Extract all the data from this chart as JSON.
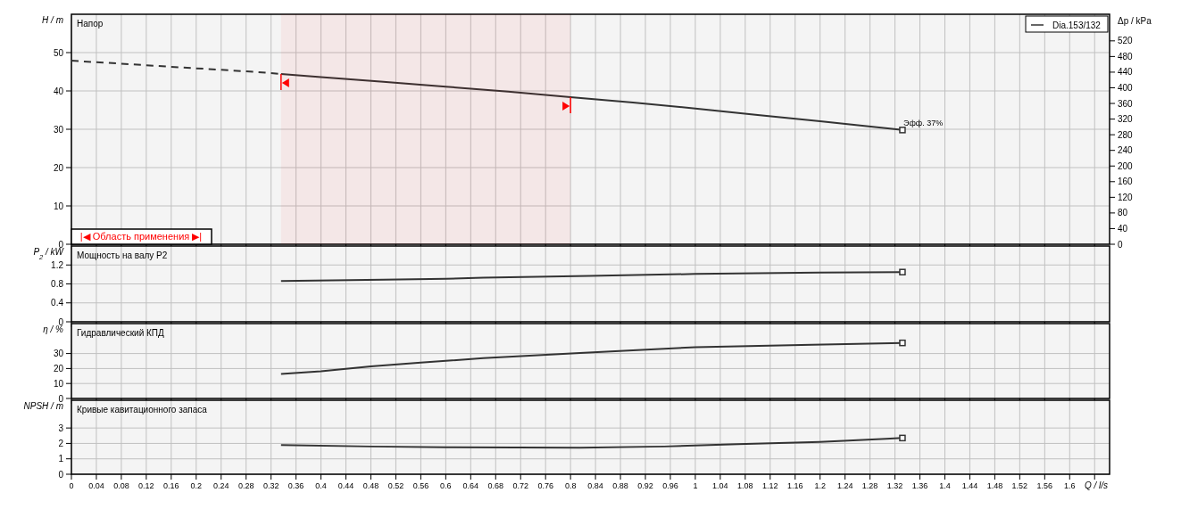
{
  "chart_data": [
    {
      "type": "line",
      "title": "Напор",
      "ylabel": "H / m",
      "y2label": "Δp / kPa",
      "xlim": [
        0,
        1.664
      ],
      "xticks": [
        0,
        0.04,
        0.08,
        0.12,
        0.16,
        0.2,
        0.24,
        0.28,
        0.32,
        0.36,
        0.4,
        0.44,
        0.48,
        0.52,
        0.56,
        0.6,
        0.64,
        0.68,
        0.72,
        0.76,
        0.8,
        0.84,
        0.88,
        0.92,
        0.96,
        1,
        1.04,
        1.08,
        1.12,
        1.16,
        1.2,
        1.24,
        1.28,
        1.32,
        1.36,
        1.4,
        1.44,
        1.48,
        1.52,
        1.56,
        1.6,
        1.64
      ],
      "ylim": [
        0,
        60
      ],
      "yticks": [
        0,
        10,
        20,
        30,
        40,
        50
      ],
      "y2lim": [
        0,
        588
      ],
      "y2ticks": [
        0,
        40,
        80,
        120,
        160,
        200,
        240,
        280,
        320,
        360,
        400,
        440,
        480,
        520
      ],
      "grid": true,
      "legend": "top right",
      "tick_labels": "y",
      "series": [
        {
          "color": "#333333",
          "line_style": "dashed",
          "x": [
            0,
            0.1,
            0.2,
            0.3,
            0.336
          ],
          "values": [
            47.9,
            46.9,
            45.9,
            44.9,
            44.4
          ]
        },
        {
          "name": "Dia.153/132",
          "color": "#333333",
          "line_style": "solid",
          "x": [
            0.336,
            0.4,
            0.5,
            0.6,
            0.7,
            0.8,
            0.9,
            1.0,
            1.1,
            1.2,
            1.332
          ],
          "values": [
            44.4,
            43.6,
            42.4,
            41.1,
            39.8,
            38.4,
            37.0,
            35.4,
            33.7,
            32.1,
            29.8
          ]
        },
        {
          "type": "scatter",
          "marker": "square",
          "color": "#333333",
          "x": [
            1.332
          ],
          "values": [
            29.8
          ]
        }
      ],
      "bands": [
        {
          "axis": "x",
          "from": 0.336,
          "to": 0.8,
          "label": "|◀ Область применения ▶|",
          "color": "#ff0000"
        }
      ],
      "annotations": [
        {
          "text": "Эфф. 37%",
          "x": 1.332,
          "y": 29.8
        }
      ]
    },
    {
      "type": "line",
      "title": "Мощность на валу P2",
      "ylabel": "P$_{2}$ / kW",
      "xlim": [
        0,
        1.664
      ],
      "xticks": [
        0,
        0.04,
        0.08,
        0.12,
        0.16,
        0.2,
        0.24,
        0.28,
        0.32,
        0.36,
        0.4,
        0.44,
        0.48,
        0.52,
        0.56,
        0.6,
        0.64,
        0.68,
        0.72,
        0.76,
        0.8,
        0.84,
        0.88,
        0.92,
        0.96,
        1,
        1.04,
        1.08,
        1.12,
        1.16,
        1.2,
        1.24,
        1.28,
        1.32,
        1.36,
        1.4,
        1.44,
        1.48,
        1.52,
        1.56,
        1.6,
        1.64
      ],
      "ylim": [
        0,
        1.6
      ],
      "yticks": [
        0,
        0.4,
        0.8,
        1.2
      ],
      "grid": true,
      "tick_labels": "y",
      "series": [
        {
          "color": "#333333",
          "line_style": "solid",
          "x": [
            0.336,
            0.5,
            0.6,
            0.66,
            0.83,
            1.0,
            1.2,
            1.332
          ],
          "values": [
            0.86,
            0.89,
            0.91,
            0.93,
            0.97,
            1.01,
            1.04,
            1.05
          ]
        },
        {
          "type": "scatter",
          "marker": "square",
          "color": "#333333",
          "x": [
            1.332
          ],
          "values": [
            1.05
          ]
        }
      ]
    },
    {
      "type": "line",
      "title": "Гидравлический КПД",
      "ylabel": "η / %",
      "xlim": [
        0,
        1.664
      ],
      "xticks": [
        0,
        0.04,
        0.08,
        0.12,
        0.16,
        0.2,
        0.24,
        0.28,
        0.32,
        0.36,
        0.4,
        0.44,
        0.48,
        0.52,
        0.56,
        0.6,
        0.64,
        0.68,
        0.72,
        0.76,
        0.8,
        0.84,
        0.88,
        0.92,
        0.96,
        1,
        1.04,
        1.08,
        1.12,
        1.16,
        1.2,
        1.24,
        1.28,
        1.32,
        1.36,
        1.4,
        1.44,
        1.48,
        1.52,
        1.56,
        1.6,
        1.64
      ],
      "ylim": [
        0,
        50
      ],
      "yticks": [
        0,
        10,
        20,
        30
      ],
      "grid": true,
      "tick_labels": "y",
      "series": [
        {
          "color": "#333333",
          "line_style": "solid",
          "x": [
            0.336,
            0.4,
            0.48,
            0.56,
            0.66,
            0.815,
            0.9,
            1.0,
            1.187,
            1.332
          ],
          "values": [
            16.4,
            18.2,
            21.4,
            24.0,
            26.9,
            30.4,
            32.2,
            34.2,
            35.9,
            37.1
          ]
        },
        {
          "type": "scatter",
          "marker": "square",
          "color": "#333333",
          "x": [
            1.332
          ],
          "values": [
            37.1
          ]
        }
      ]
    },
    {
      "type": "line",
      "title": "Кривые кавитационного запаса",
      "ylabel": "NPSH / m",
      "xlabel": "Q / l/s",
      "xlim": [
        0,
        1.664
      ],
      "xticks": [
        0,
        0.04,
        0.08,
        0.12,
        0.16,
        0.2,
        0.24,
        0.28,
        0.32,
        0.36,
        0.4,
        0.44,
        0.48,
        0.52,
        0.56,
        0.6,
        0.64,
        0.68,
        0.72,
        0.76,
        0.8,
        0.84,
        0.88,
        0.92,
        0.96,
        1,
        1.04,
        1.08,
        1.12,
        1.16,
        1.2,
        1.24,
        1.28,
        1.32,
        1.36,
        1.4,
        1.44,
        1.48,
        1.52,
        1.56,
        1.6,
        {
          "value": 1.64,
          "label": null
        }
      ],
      "ylim": [
        0,
        4.8
      ],
      "yticks": [
        0,
        1,
        2,
        3
      ],
      "grid": true,
      "series": [
        {
          "color": "#333333",
          "line_style": "solid",
          "x": [
            0.336,
            0.48,
            0.6,
            0.815,
            0.95,
            1.068,
            1.2,
            1.306,
            1.332
          ],
          "values": [
            1.9,
            1.8,
            1.75,
            1.72,
            1.8,
            1.95,
            2.1,
            2.3,
            2.35
          ]
        },
        {
          "type": "scatter",
          "marker": "square",
          "color": "#333333",
          "x": [
            1.332
          ],
          "values": [
            2.35
          ]
        }
      ]
    }
  ]
}
